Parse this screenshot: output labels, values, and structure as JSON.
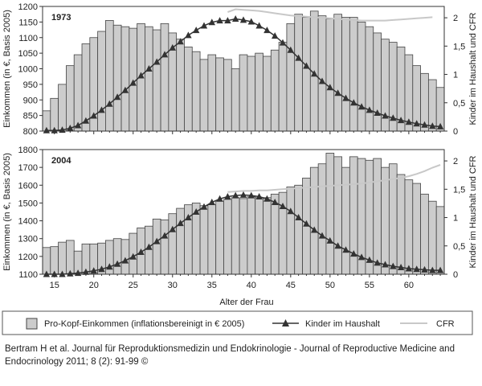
{
  "chart_data": [
    {
      "type": "bar",
      "title": "1973",
      "x": [
        14,
        15,
        16,
        17,
        18,
        19,
        20,
        21,
        22,
        23,
        24,
        25,
        26,
        27,
        28,
        29,
        30,
        31,
        32,
        33,
        34,
        35,
        36,
        37,
        38,
        39,
        40,
        41,
        42,
        43,
        44,
        45,
        46,
        47,
        48,
        49,
        50,
        51,
        52,
        53,
        54,
        55,
        56,
        57,
        58,
        59,
        60,
        61,
        62,
        63,
        64
      ],
      "ylabel": "Einkommen (in €, Basis 2005)",
      "y2label": "Kinder im Haushalt und CFR",
      "ylim": [
        800,
        1200
      ],
      "y2lim": [
        0,
        2.2
      ],
      "yticks": [
        "800",
        "850",
        "900",
        "950",
        "1000",
        "1050",
        "1100",
        "1150",
        "1200"
      ],
      "y2ticks": [
        "0",
        "0,5",
        "1",
        "1,5",
        "2"
      ],
      "y2tick_values": [
        0,
        0.5,
        1,
        1.5,
        2
      ],
      "series": [
        {
          "name": "Pro-Kopf-Einkommen (inflationsbereinigt in € 2005)",
          "kind": "bar",
          "axis": "left",
          "values": [
            865,
            905,
            950,
            1010,
            1045,
            1080,
            1100,
            1120,
            1155,
            1140,
            1135,
            1130,
            1145,
            1135,
            1125,
            1145,
            1115,
            1095,
            1070,
            1055,
            1030,
            1045,
            1035,
            1030,
            1000,
            1045,
            1040,
            1050,
            1040,
            1060,
            1085,
            1145,
            1175,
            1165,
            1185,
            1170,
            1160,
            1175,
            1165,
            1165,
            1150,
            1135,
            1115,
            1095,
            1085,
            1070,
            1045,
            1010,
            985,
            965,
            940
          ]
        },
        {
          "name": "Kinder im Haushalt",
          "kind": "line-triangle",
          "axis": "right",
          "values": [
            0.01,
            0.01,
            0.02,
            0.05,
            0.1,
            0.18,
            0.27,
            0.37,
            0.48,
            0.6,
            0.72,
            0.85,
            0.98,
            1.1,
            1.22,
            1.35,
            1.47,
            1.58,
            1.69,
            1.78,
            1.86,
            1.92,
            1.95,
            1.95,
            1.98,
            1.96,
            1.93,
            1.86,
            1.78,
            1.68,
            1.56,
            1.43,
            1.29,
            1.15,
            1.01,
            0.88,
            0.77,
            0.67,
            0.58,
            0.5,
            0.43,
            0.37,
            0.32,
            0.27,
            0.23,
            0.19,
            0.16,
            0.13,
            0.11,
            0.09,
            0.08
          ]
        },
        {
          "name": "CFR",
          "kind": "line",
          "axis": "right",
          "x": [
            37,
            38,
            39,
            40,
            41,
            42,
            43,
            44,
            45,
            46,
            47,
            48,
            49,
            50,
            51,
            52,
            53,
            54,
            55,
            56,
            57,
            58,
            59,
            60,
            61,
            62,
            63
          ],
          "values": [
            2.1,
            2.15,
            2.14,
            2.13,
            2.12,
            2.1,
            2.08,
            2.06,
            2.04,
            2.03,
            2.02,
            2.01,
            2.0,
            1.99,
            1.98,
            1.97,
            1.96,
            1.95,
            1.95,
            1.95,
            1.95,
            1.96,
            1.97,
            1.98,
            1.99,
            2.0,
            2.01
          ]
        }
      ]
    },
    {
      "type": "bar",
      "title": "2004",
      "x": [
        14,
        15,
        16,
        17,
        18,
        19,
        20,
        21,
        22,
        23,
        24,
        25,
        26,
        27,
        28,
        29,
        30,
        31,
        32,
        33,
        34,
        35,
        36,
        37,
        38,
        39,
        40,
        41,
        42,
        43,
        44,
        45,
        46,
        47,
        48,
        49,
        50,
        51,
        52,
        53,
        54,
        55,
        56,
        57,
        58,
        59,
        60,
        61,
        62,
        63,
        64
      ],
      "xlabel": "Alter der Frau",
      "xticks": [
        "15",
        "20",
        "25",
        "30",
        "35",
        "40",
        "45",
        "50",
        "55",
        "60"
      ],
      "xtick_values": [
        15,
        20,
        25,
        30,
        35,
        40,
        45,
        50,
        55,
        60
      ],
      "ylabel": "Einkommen (in €, Basis 2005)",
      "y2label": "Kinder im Haushalt und CFR",
      "ylim": [
        1100,
        1800
      ],
      "y2lim": [
        0,
        2.2
      ],
      "yticks": [
        "1100",
        "1200",
        "1300",
        "1400",
        "1500",
        "1600",
        "1700",
        "1800"
      ],
      "y2ticks": [
        "0",
        "0,5",
        "1",
        "1,5",
        "2"
      ],
      "y2tick_values": [
        0,
        0.5,
        1,
        1.5,
        2
      ],
      "series": [
        {
          "name": "Pro-Kopf-Einkommen (inflationsbereinigt in € 2005)",
          "kind": "bar",
          "axis": "left",
          "values": [
            1250,
            1255,
            1280,
            1290,
            1230,
            1270,
            1270,
            1275,
            1290,
            1300,
            1295,
            1330,
            1360,
            1370,
            1410,
            1405,
            1440,
            1470,
            1490,
            1500,
            1485,
            1490,
            1510,
            1520,
            1530,
            1525,
            1535,
            1530,
            1530,
            1550,
            1560,
            1590,
            1600,
            1640,
            1700,
            1720,
            1780,
            1760,
            1700,
            1760,
            1750,
            1740,
            1750,
            1700,
            1720,
            1660,
            1630,
            1610,
            1550,
            1510,
            1480
          ]
        },
        {
          "name": "Kinder im Haushalt",
          "kind": "line-triangle",
          "axis": "right",
          "values": [
            0.0,
            0.0,
            0.0,
            0.01,
            0.02,
            0.04,
            0.06,
            0.09,
            0.13,
            0.18,
            0.24,
            0.31,
            0.39,
            0.48,
            0.58,
            0.68,
            0.79,
            0.9,
            1.0,
            1.1,
            1.19,
            1.27,
            1.33,
            1.37,
            1.39,
            1.4,
            1.39,
            1.37,
            1.33,
            1.27,
            1.2,
            1.11,
            1.0,
            0.89,
            0.78,
            0.68,
            0.59,
            0.5,
            0.43,
            0.36,
            0.3,
            0.25,
            0.2,
            0.17,
            0.14,
            0.12,
            0.1,
            0.09,
            0.08,
            0.07,
            0.07
          ]
        },
        {
          "name": "CFR",
          "kind": "line",
          "axis": "right",
          "x": [
            37,
            38,
            39,
            40,
            41,
            42,
            43,
            44,
            45,
            46,
            47,
            48,
            49,
            50,
            51,
            52,
            53,
            54,
            55,
            56,
            57,
            58,
            59,
            60,
            61,
            62,
            63,
            64
          ],
          "values": [
            1.45,
            1.46,
            1.47,
            1.47,
            1.48,
            1.48,
            1.49,
            1.5,
            1.51,
            1.52,
            1.53,
            1.54,
            1.55,
            1.56,
            1.57,
            1.58,
            1.59,
            1.6,
            1.62,
            1.64,
            1.66,
            1.68,
            1.7,
            1.73,
            1.77,
            1.82,
            1.88,
            1.93
          ]
        }
      ]
    }
  ],
  "legend": {
    "bar_label": "Pro-Kopf-Einkommen (inflationsbereinigt in € 2005)",
    "line_label": "Kinder im Haushalt",
    "cfr_label": "CFR"
  },
  "caption": "Bertram H et al. Journal für Reproduktionsmedizin und Endokrinologie - Journal of Reproductive Medicine and Endocrinology 2011; 8 (2): 91-99 ©",
  "colors": {
    "bar_fill": "#cccccc",
    "bar_stroke": "#444444",
    "kinder_line": "#333333",
    "cfr_line": "#c8c8c8",
    "axis": "#333333",
    "text": "#222222"
  }
}
